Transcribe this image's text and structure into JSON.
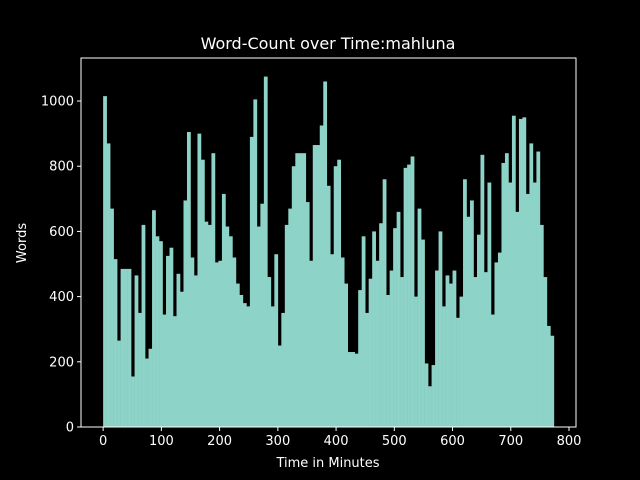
{
  "chart_data": {
    "type": "bar",
    "title": "Word-Count over Time:mahluna",
    "xlabel": "Time in Minutes",
    "ylabel": "Words",
    "color": "#8dd3c7",
    "x": [
      0,
      6,
      12,
      18,
      24,
      30,
      36,
      42,
      48,
      54,
      60,
      66,
      72,
      78,
      84,
      90,
      96,
      102,
      108,
      114,
      120,
      126,
      132,
      138,
      144,
      150,
      156,
      162,
      168,
      174,
      180,
      186,
      192,
      198,
      204,
      210,
      216,
      222,
      228,
      234,
      240,
      246,
      252,
      258,
      264,
      270,
      276,
      282,
      288,
      294,
      300,
      306,
      312,
      318,
      324,
      330,
      336,
      342,
      348,
      354,
      360,
      366,
      372,
      378,
      384,
      390,
      396,
      402,
      408,
      414,
      420,
      426,
      432,
      438,
      444,
      450,
      456,
      462,
      468,
      474,
      480,
      486,
      492,
      498,
      504,
      510,
      516,
      522,
      528,
      534,
      540,
      546,
      552,
      558,
      564,
      570,
      576,
      582,
      588,
      594,
      600,
      606,
      612,
      618,
      624,
      630,
      636,
      642,
      648,
      654,
      660,
      666,
      672,
      678,
      684,
      690,
      696,
      702,
      708,
      714,
      720,
      726,
      732,
      738,
      744,
      750,
      756,
      762,
      768
    ],
    "values": [
      1015,
      870,
      670,
      515,
      265,
      485,
      485,
      485,
      155,
      465,
      350,
      620,
      210,
      240,
      665,
      585,
      570,
      345,
      525,
      550,
      340,
      470,
      415,
      695,
      905,
      520,
      465,
      900,
      820,
      630,
      620,
      840,
      505,
      510,
      715,
      615,
      585,
      520,
      440,
      405,
      380,
      370,
      890,
      1005,
      615,
      685,
      1075,
      460,
      370,
      530,
      250,
      350,
      620,
      670,
      800,
      840,
      840,
      840,
      690,
      510,
      865,
      865,
      925,
      1060,
      740,
      530,
      800,
      820,
      520,
      440,
      230,
      230,
      225,
      420,
      585,
      350,
      455,
      600,
      510,
      625,
      760,
      405,
      480,
      610,
      660,
      460,
      795,
      805,
      830,
      400,
      670,
      575,
      195,
      125,
      190,
      480,
      600,
      370,
      465,
      440,
      480,
      335,
      400,
      760,
      645,
      695,
      460,
      590,
      835,
      475,
      750,
      345,
      505,
      535,
      810,
      840,
      750,
      955,
      660,
      945,
      950,
      715,
      870,
      750,
      845,
      620,
      460,
      310,
      280
    ],
    "xlim": [
      -38,
      812
    ],
    "ylim": [
      0,
      1132
    ],
    "xticks": [
      0,
      100,
      200,
      300,
      400,
      500,
      600,
      700,
      800
    ],
    "yticks": [
      0,
      200,
      400,
      600,
      800,
      1000
    ]
  }
}
